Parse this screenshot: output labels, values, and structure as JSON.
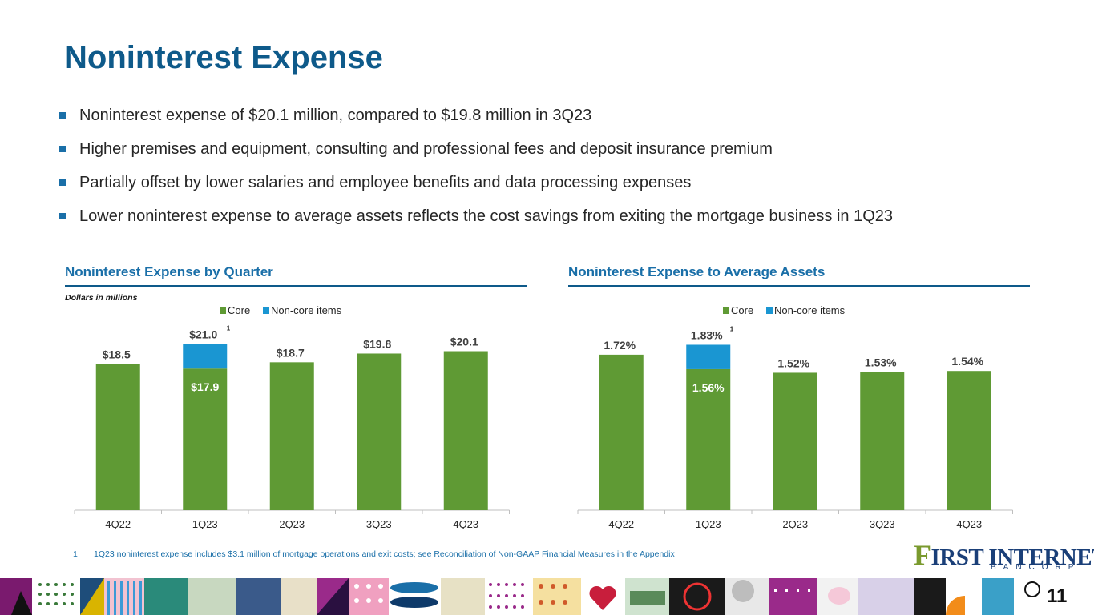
{
  "title": "Noninterest Expense",
  "bullets": [
    "Noninterest expense of $20.1 million, compared to $19.8 million in 3Q23",
    "Higher premises and equipment, consulting and professional fees and deposit insurance premium",
    "Partially offset by lower salaries and employee benefits and data processing expenses",
    "Lower noninterest expense to average assets reflects the cost savings from exiting the mortgage business in 1Q23"
  ],
  "colors": {
    "title": "#0e5a8a",
    "accent": "#1a6fa8",
    "core": "#5f9a34",
    "noncore": "#1a96d2"
  },
  "chart_data": [
    {
      "type": "bar",
      "stacked": true,
      "title": "Noninterest Expense by Quarter",
      "subtitle": "Dollars in millions",
      "categories": [
        "4Q22",
        "1Q23",
        "2Q23",
        "3Q23",
        "4Q23"
      ],
      "series": [
        {
          "name": "Core",
          "values": [
            18.5,
            17.9,
            18.7,
            19.8,
            20.1
          ]
        },
        {
          "name": "Non-core items",
          "values": [
            0,
            3.1,
            0,
            0,
            0
          ]
        }
      ],
      "total_labels": [
        "$18.5",
        "$21.0",
        "$18.7",
        "$19.8",
        "$20.1"
      ],
      "inner_labels": [
        "",
        "$17.9",
        "",
        "",
        ""
      ],
      "footnote_marker": {
        "category": "1Q23",
        "text": "1"
      },
      "ylim": [
        0,
        24
      ],
      "legend": "top-center",
      "grid": false
    },
    {
      "type": "bar",
      "stacked": true,
      "title": "Noninterest Expense to Average Assets",
      "subtitle": "",
      "categories": [
        "4Q22",
        "1Q23",
        "2Q23",
        "3Q23",
        "4Q23"
      ],
      "series": [
        {
          "name": "Core",
          "values": [
            1.72,
            1.56,
            1.52,
            1.53,
            1.54
          ]
        },
        {
          "name": "Non-core items",
          "values": [
            0,
            0.27,
            0,
            0,
            0
          ]
        }
      ],
      "total_labels": [
        "1.72%",
        "1.83%",
        "1.52%",
        "1.53%",
        "1.54%"
      ],
      "inner_labels": [
        "",
        "1.56%",
        "",
        "",
        ""
      ],
      "footnote_marker": {
        "category": "1Q23",
        "text": "1"
      },
      "ylim": [
        0,
        2.1
      ],
      "legend": "top-center",
      "grid": false
    }
  ],
  "footnote": {
    "number": "1",
    "text": "1Q23 noninterest expense includes $3.1 million of mortgage operations and exit costs; see Reconciliation of Non-GAAP Financial Measures in the Appendix"
  },
  "logo": {
    "first_letter": "F",
    "rest": "IRST INTERNET",
    "sub": "BANCORP"
  },
  "page_number": "11"
}
